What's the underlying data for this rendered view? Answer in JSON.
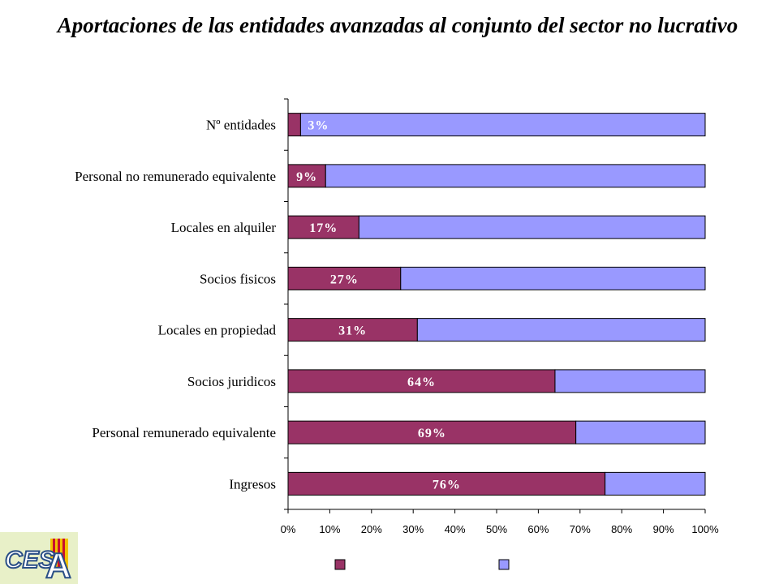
{
  "page": {
    "title": "Aportaciones de las entidades avanzadas al conjunto del sector no lucrativo"
  },
  "logo": {
    "text": "CESA",
    "icon": "cesa-logo"
  },
  "colors": {
    "series_a": "#993366",
    "series_b": "#9999FF",
    "bar_stroke": "#000000",
    "axis": "#000000"
  },
  "chart_data": {
    "type": "bar",
    "orientation": "horizontal",
    "stacked": "percent",
    "categories": [
      "Nº entidades",
      "Personal no remunerado equivalente",
      "Locales en alquiler",
      "Socios fisicos",
      "Locales en propiedad",
      "Socios juridicos",
      "Personal remunerado equivalente",
      "Ingresos"
    ],
    "series": [
      {
        "values": [
          3,
          9,
          17,
          27,
          31,
          64,
          69,
          76
        ]
      },
      {
        "values": [
          97,
          91,
          83,
          73,
          69,
          36,
          31,
          24
        ]
      }
    ],
    "data_labels": [
      "3%",
      "9%",
      "17%",
      "27%",
      "31%",
      "64%",
      "69%",
      "76%"
    ],
    "x_ticks": [
      "0%",
      "10%",
      "20%",
      "30%",
      "40%",
      "50%",
      "60%",
      "70%",
      "80%",
      "90%",
      "100%"
    ],
    "xlim": [
      0,
      100
    ],
    "grid": false,
    "legend_position": "bottom"
  }
}
